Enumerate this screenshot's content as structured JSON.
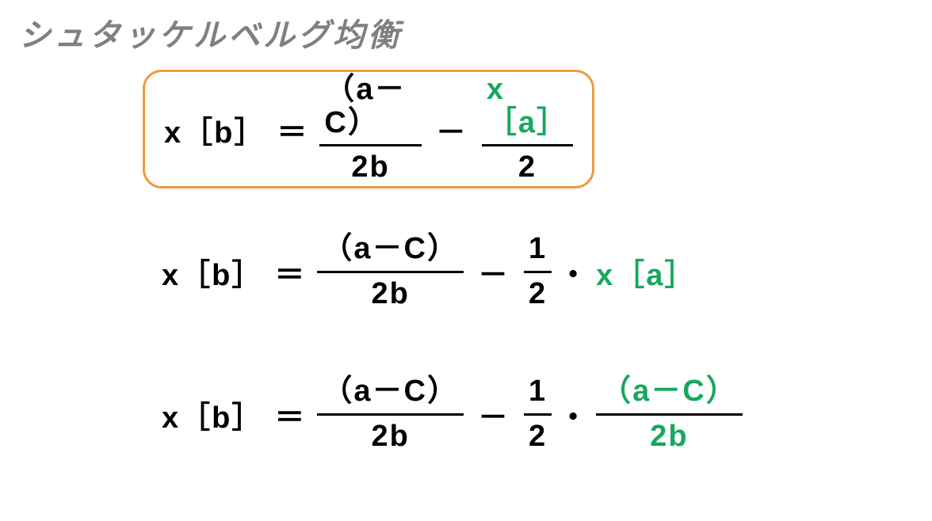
{
  "title": "シュタッケルベルグ均衡",
  "colors": {
    "title": "#808080",
    "text": "#000000",
    "accent": "#17a85f",
    "box_border": "#ed9b40",
    "background": "#ffffff"
  },
  "typography": {
    "title_fontsize": 40,
    "equation_fontsize": 38,
    "title_italic": true,
    "title_bold": true,
    "equation_bold": true
  },
  "layout": {
    "boxed_equation_index": 0,
    "box_radius": 24,
    "box_border_width": 3
  },
  "equations": [
    {
      "lhs": "x［b］",
      "terms": [
        {
          "type": "frac",
          "num": "（a－C）",
          "den": "2b",
          "accent": false
        },
        {
          "type": "op",
          "text": "－"
        },
        {
          "type": "frac",
          "num": "x［a］",
          "den": "2",
          "num_accent": true,
          "den_accent": false
        }
      ]
    },
    {
      "lhs": "x［b］",
      "terms": [
        {
          "type": "frac",
          "num": "（a－C）",
          "den": "2b",
          "accent": false
        },
        {
          "type": "op",
          "text": "－"
        },
        {
          "type": "frac",
          "num": "1",
          "den": "2",
          "accent": false
        },
        {
          "type": "dot",
          "text": "・"
        },
        {
          "type": "text",
          "text": "x［a］",
          "accent": true
        }
      ]
    },
    {
      "lhs": "x［b］",
      "terms": [
        {
          "type": "frac",
          "num": "（a－C）",
          "den": "2b",
          "accent": false
        },
        {
          "type": "op",
          "text": "－"
        },
        {
          "type": "frac",
          "num": "1",
          "den": "2",
          "accent": false
        },
        {
          "type": "dot",
          "text": "・"
        },
        {
          "type": "frac",
          "num": "（a－C）",
          "den": "2b",
          "num_accent": true,
          "den_accent": true
        }
      ]
    }
  ]
}
